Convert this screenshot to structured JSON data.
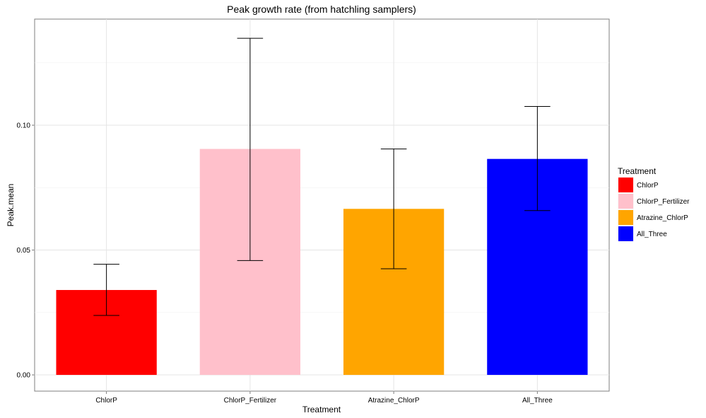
{
  "chart_data": {
    "type": "bar",
    "title": "Peak growth rate (from hatchling samplers)",
    "xlabel": "Treatment",
    "ylabel": "Peak.mean",
    "categories": [
      "ChlorP",
      "ChlorP_Fertilizer",
      "Atrazine_ChlorP",
      "All_Three"
    ],
    "values": [
      0.034,
      0.0905,
      0.0665,
      0.0865
    ],
    "error_low": [
      0.0238,
      0.0458,
      0.0425,
      0.0658
    ],
    "error_high": [
      0.0443,
      0.1348,
      0.0905,
      0.1075
    ],
    "colors": [
      "#ff0000",
      "#ffc0cb",
      "#ffa500",
      "#0000ff"
    ],
    "ylim": [
      -0.0065,
      0.1425
    ],
    "yticks": [
      0.0,
      0.05,
      0.1
    ],
    "ytick_labels": [
      "0.00",
      "0.05",
      "0.10"
    ],
    "grid": true,
    "legend": {
      "title": "Treatment",
      "placement": "right",
      "entries": [
        "ChlorP",
        "ChlorP_Fertilizer",
        "Atrazine_ChlorP",
        "All_Three"
      ]
    }
  }
}
